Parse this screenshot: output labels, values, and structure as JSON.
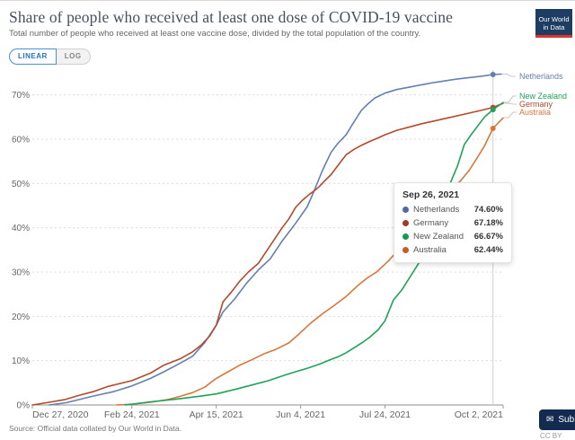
{
  "header": {
    "title": "Share of people who received at least one dose of COVID-19 vaccine",
    "subtitle": "Total number of people who received at least one vaccine dose, divided by the total population of the country.",
    "logo": {
      "line1": "Our World",
      "line2": "in Data",
      "bg_color": "#1d3d63",
      "bar_color": "#dc352c"
    }
  },
  "controls": {
    "linear_label": "LINEAR",
    "log_label": "LOG"
  },
  "chart_data": {
    "type": "line",
    "title": "Share of people who received at least one dose of COVID-19 vaccine",
    "xlabel": "",
    "ylabel": "",
    "x_unit": "days since Dec 27, 2020",
    "y_unit": "%",
    "ylim": [
      0,
      75
    ],
    "xlim_days": [
      0,
      279
    ],
    "grid": "horizontal-dashed",
    "legend_position": "right-edge-labels",
    "y_ticks": [
      0,
      10,
      20,
      30,
      40,
      50,
      60,
      70
    ],
    "x_ticks": [
      {
        "day": 0,
        "label": "Dec 27, 2020",
        "align": "start"
      },
      {
        "day": 59,
        "label": "Feb 24, 2021",
        "align": "middle"
      },
      {
        "day": 109,
        "label": "Apr 15, 2021",
        "align": "middle"
      },
      {
        "day": 159,
        "label": "Jun 4, 2021",
        "align": "middle"
      },
      {
        "day": 209,
        "label": "Jul 24, 2021",
        "align": "middle"
      },
      {
        "day": 279,
        "label": "Oct 2, 2021",
        "align": "end"
      }
    ],
    "hover": {
      "day": 273,
      "label": "Sep 26, 2021"
    },
    "series": [
      {
        "name": "Netherlands",
        "color": "#6480b0",
        "label_pos": [
          578,
          84
        ],
        "connector": [
          [
            559,
            81.5
          ],
          [
            564,
            81.5
          ],
          [
            569,
            84
          ],
          [
            574,
            84
          ]
        ],
        "points": [
          [
            10,
            0
          ],
          [
            20,
            0.5
          ],
          [
            36,
            2
          ],
          [
            48,
            3
          ],
          [
            59,
            4.3
          ],
          [
            70,
            6
          ],
          [
            78,
            7.5
          ],
          [
            88,
            9.5
          ],
          [
            95,
            11
          ],
          [
            102,
            14
          ],
          [
            109,
            18
          ],
          [
            113,
            21
          ],
          [
            120,
            24
          ],
          [
            127,
            27.5
          ],
          [
            134,
            30.5
          ],
          [
            141,
            33
          ],
          [
            148,
            37
          ],
          [
            156,
            41
          ],
          [
            163,
            44.8
          ],
          [
            167,
            48.3
          ],
          [
            172,
            53
          ],
          [
            177,
            57
          ],
          [
            181,
            59
          ],
          [
            186,
            61
          ],
          [
            190,
            63.5
          ],
          [
            195,
            66.5
          ],
          [
            199,
            68
          ],
          [
            203,
            69.3
          ],
          [
            209,
            70.4
          ],
          [
            216,
            71.2
          ],
          [
            224,
            71.8
          ],
          [
            231,
            72.3
          ],
          [
            238,
            72.8
          ],
          [
            245,
            73.2
          ],
          [
            252,
            73.6
          ],
          [
            259,
            73.9
          ],
          [
            266,
            74.2
          ],
          [
            273,
            74.6
          ],
          [
            278,
            74.7
          ]
        ]
      },
      {
        "name": "Australia",
        "color": "#d9763a",
        "label_pos": [
          578,
          124
        ],
        "connector": [
          [
            561,
            130
          ],
          [
            566,
            130
          ],
          [
            571,
            124
          ],
          [
            575,
            124
          ]
        ],
        "points": [
          [
            50,
            0
          ],
          [
            60,
            0.2
          ],
          [
            70,
            0.6
          ],
          [
            80,
            1.2
          ],
          [
            88,
            2
          ],
          [
            95,
            2.8
          ],
          [
            102,
            4
          ],
          [
            109,
            6
          ],
          [
            116,
            7.5
          ],
          [
            123,
            9
          ],
          [
            130,
            10.2
          ],
          [
            137,
            11.5
          ],
          [
            144,
            12.5
          ],
          [
            152,
            14
          ],
          [
            158,
            16
          ],
          [
            165,
            18.5
          ],
          [
            172,
            20.6
          ],
          [
            179,
            22.5
          ],
          [
            186,
            24.5
          ],
          [
            193,
            27
          ],
          [
            199,
            28.8
          ],
          [
            204,
            30
          ],
          [
            211,
            32.5
          ],
          [
            218,
            35.5
          ],
          [
            225,
            38.5
          ],
          [
            233,
            42
          ],
          [
            240,
            45
          ],
          [
            248,
            48.5
          ],
          [
            254,
            50.7
          ],
          [
            259,
            53
          ],
          [
            264,
            56
          ],
          [
            268,
            58.5
          ],
          [
            273,
            62.44
          ],
          [
            279,
            64.8
          ]
        ]
      },
      {
        "name": "Germany",
        "color": "#b5492a",
        "label_pos": [
          578,
          115
        ],
        "connector": [
          [
            561,
            114
          ],
          [
            566,
            114
          ],
          [
            571,
            115
          ],
          [
            575,
            115
          ]
        ],
        "points": [
          [
            0,
            0
          ],
          [
            10,
            0.6
          ],
          [
            19,
            1.2
          ],
          [
            28,
            2.2
          ],
          [
            36,
            3
          ],
          [
            45,
            4.2
          ],
          [
            59,
            5.5
          ],
          [
            70,
            7.2
          ],
          [
            78,
            9
          ],
          [
            88,
            10.5
          ],
          [
            95,
            12
          ],
          [
            100,
            13.5
          ],
          [
            105,
            15.5
          ],
          [
            109,
            18
          ],
          [
            113,
            23.3
          ],
          [
            118,
            25.5
          ],
          [
            123,
            28
          ],
          [
            128,
            30
          ],
          [
            134,
            32
          ],
          [
            141,
            36
          ],
          [
            148,
            40
          ],
          [
            152,
            42
          ],
          [
            156,
            44.6
          ],
          [
            160,
            46.2
          ],
          [
            164,
            47.5
          ],
          [
            167,
            48.3
          ],
          [
            170,
            49.3
          ],
          [
            173,
            50.5
          ],
          [
            177,
            52
          ],
          [
            181,
            54
          ],
          [
            186,
            56.5
          ],
          [
            191,
            57.8
          ],
          [
            195,
            58.6
          ],
          [
            200,
            59.5
          ],
          [
            205,
            60.3
          ],
          [
            209,
            61
          ],
          [
            216,
            62
          ],
          [
            224,
            62.8
          ],
          [
            231,
            63.5
          ],
          [
            238,
            64.1
          ],
          [
            245,
            64.7
          ],
          [
            252,
            65.3
          ],
          [
            259,
            65.9
          ],
          [
            266,
            66.5
          ],
          [
            273,
            67.18
          ],
          [
            279,
            68.1
          ]
        ]
      },
      {
        "name": "New Zealand",
        "color": "#1ea358",
        "label_pos": [
          578,
          106
        ],
        "connector": [
          [
            561,
            113
          ],
          [
            566,
            113
          ],
          [
            571,
            106
          ],
          [
            575,
            106
          ]
        ],
        "points": [
          [
            55,
            0
          ],
          [
            70,
            0.7
          ],
          [
            85,
            1.3
          ],
          [
            100,
            2
          ],
          [
            109,
            2.5
          ],
          [
            120,
            3.5
          ],
          [
            130,
            4.5
          ],
          [
            140,
            5.5
          ],
          [
            150,
            6.8
          ],
          [
            156,
            7.5
          ],
          [
            163,
            8.3
          ],
          [
            170,
            9.2
          ],
          [
            177,
            10.3
          ],
          [
            182,
            11
          ],
          [
            186,
            11.8
          ],
          [
            191,
            13
          ],
          [
            196,
            14.2
          ],
          [
            200,
            15.3
          ],
          [
            205,
            17
          ],
          [
            209,
            19
          ],
          [
            214,
            23.7
          ],
          [
            219,
            26
          ],
          [
            224,
            29
          ],
          [
            229,
            32
          ],
          [
            233,
            34
          ],
          [
            238,
            38
          ],
          [
            242,
            42
          ],
          [
            245,
            45.3
          ],
          [
            248,
            50.4
          ],
          [
            252,
            54
          ],
          [
            256,
            58.8
          ],
          [
            260,
            61
          ],
          [
            264,
            63
          ],
          [
            268,
            65
          ],
          [
            273,
            66.67
          ],
          [
            279,
            68.3
          ]
        ]
      }
    ]
  },
  "tooltip": {
    "date": "Sep 26, 2021",
    "rows": [
      {
        "name": "Netherlands",
        "value": "74.60%",
        "color": "#4a6ba5"
      },
      {
        "name": "Germany",
        "value": "67.18%",
        "color": "#a33a26"
      },
      {
        "name": "New Zealand",
        "value": "66.67%",
        "color": "#169a53"
      },
      {
        "name": "Australia",
        "value": "62.44%",
        "color": "#c75a2e"
      }
    ]
  },
  "footer": {
    "source": "Source: Official data collated by Our World in Data.",
    "subscribe_label": "Sub",
    "cc": "CC BY"
  }
}
